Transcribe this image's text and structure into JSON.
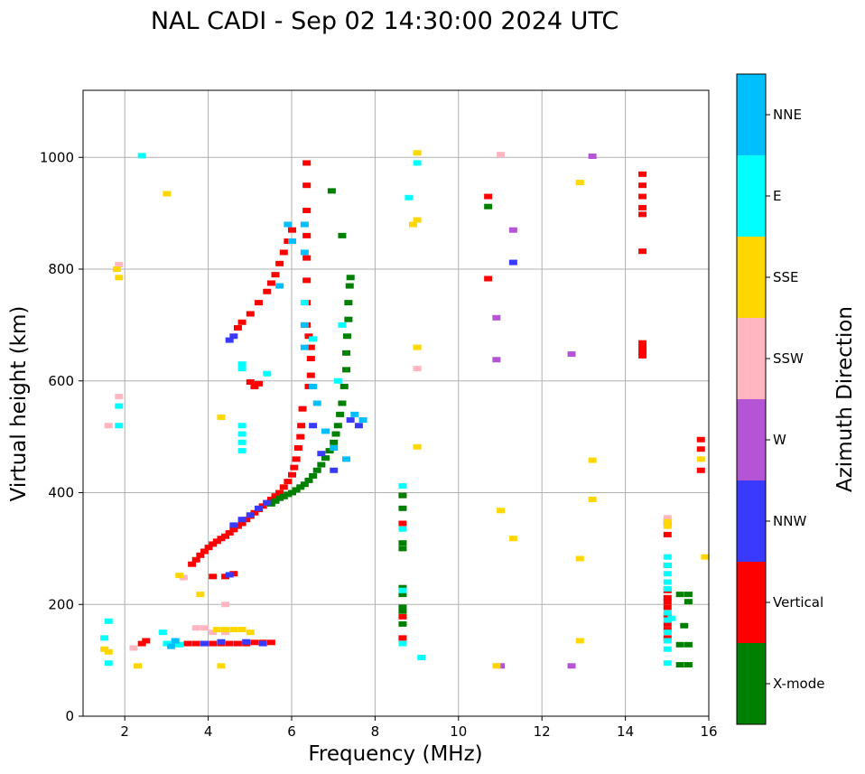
{
  "chart_data": {
    "type": "scatter",
    "title": "NAL CADI - Sep 02 14:30:00 2024 UTC",
    "xlabel": "Frequency (MHz)",
    "ylabel": "Virtual height (km)",
    "xlim": [
      1,
      16
    ],
    "ylim": [
      0,
      1120
    ],
    "xticks": [
      2,
      4,
      6,
      8,
      10,
      12,
      14,
      16
    ],
    "yticks": [
      0,
      200,
      400,
      600,
      800,
      1000
    ],
    "grid": true,
    "colorbar": {
      "label": "Azimuth Direction",
      "categories": [
        {
          "name": "X-mode",
          "color": "#008000"
        },
        {
          "name": "Vertical",
          "color": "#ff0000"
        },
        {
          "name": "NNW",
          "color": "#3a3aff"
        },
        {
          "name": "W",
          "color": "#b455d6"
        },
        {
          "name": "SSW",
          "color": "#ffb6c1"
        },
        {
          "name": "SSE",
          "color": "#ffd700"
        },
        {
          "name": "E",
          "color": "#00ffff"
        },
        {
          "name": "NNE",
          "color": "#00bfff"
        }
      ]
    },
    "series": [
      {
        "name": "Vertical",
        "points": [
          [
            3.6,
            272
          ],
          [
            3.7,
            280
          ],
          [
            3.8,
            288
          ],
          [
            3.9,
            295
          ],
          [
            4.0,
            302
          ],
          [
            4.1,
            308
          ],
          [
            4.2,
            313
          ],
          [
            4.3,
            318
          ],
          [
            4.4,
            322
          ],
          [
            4.5,
            328
          ],
          [
            4.6,
            334
          ],
          [
            4.7,
            340
          ],
          [
            4.8,
            345
          ],
          [
            4.9,
            352
          ],
          [
            5.0,
            358
          ],
          [
            5.1,
            364
          ],
          [
            5.2,
            370
          ],
          [
            5.3,
            376
          ],
          [
            5.4,
            382
          ],
          [
            5.5,
            388
          ],
          [
            5.6,
            394
          ],
          [
            5.7,
            400
          ],
          [
            5.8,
            410
          ],
          [
            5.9,
            420
          ],
          [
            6.0,
            432
          ],
          [
            6.05,
            445
          ],
          [
            6.1,
            460
          ],
          [
            6.15,
            480
          ],
          [
            6.2,
            500
          ],
          [
            6.22,
            520
          ],
          [
            6.25,
            550
          ],
          [
            4.7,
            695
          ],
          [
            4.8,
            705
          ],
          [
            5.0,
            720
          ],
          [
            5.2,
            740
          ],
          [
            5.4,
            760
          ],
          [
            5.5,
            775
          ],
          [
            5.6,
            790
          ],
          [
            5.7,
            810
          ],
          [
            5.8,
            830
          ],
          [
            5.9,
            850
          ],
          [
            6.0,
            870
          ],
          [
            6.35,
            990
          ],
          [
            6.35,
            950
          ],
          [
            6.35,
            905
          ],
          [
            6.35,
            860
          ],
          [
            6.35,
            820
          ],
          [
            6.35,
            780
          ],
          [
            6.35,
            740
          ],
          [
            6.35,
            700
          ],
          [
            6.4,
            680
          ],
          [
            6.45,
            660
          ],
          [
            6.45,
            640
          ],
          [
            6.45,
            610
          ],
          [
            6.4,
            590
          ],
          [
            3.5,
            130
          ],
          [
            3.7,
            130
          ],
          [
            3.9,
            130
          ],
          [
            4.1,
            130
          ],
          [
            4.3,
            130
          ],
          [
            4.5,
            130
          ],
          [
            4.7,
            130
          ],
          [
            4.9,
            130
          ],
          [
            5.1,
            132
          ],
          [
            5.3,
            132
          ],
          [
            5.5,
            132
          ],
          [
            2.5,
            135
          ],
          [
            2.4,
            130
          ],
          [
            4.1,
            250
          ],
          [
            4.4,
            250
          ],
          [
            4.6,
            255
          ],
          [
            5.2,
            595
          ],
          [
            5.0,
            598
          ],
          [
            5.1,
            590
          ],
          [
            10.7,
            930
          ],
          [
            10.7,
            783
          ],
          [
            14.4,
            970
          ],
          [
            14.4,
            950
          ],
          [
            14.4,
            930
          ],
          [
            14.4,
            910
          ],
          [
            14.4,
            898
          ],
          [
            14.4,
            832
          ],
          [
            14.4,
            668
          ],
          [
            14.4,
            660
          ],
          [
            14.4,
            652
          ],
          [
            14.4,
            645
          ],
          [
            15.0,
            270
          ],
          [
            15.0,
            225
          ],
          [
            15.0,
            212
          ],
          [
            15.0,
            205
          ],
          [
            15.0,
            195
          ],
          [
            15.0,
            180
          ],
          [
            15.0,
            165
          ],
          [
            15.0,
            155
          ],
          [
            15.0,
            140
          ],
          [
            15.0,
            325
          ],
          [
            15.8,
            495
          ],
          [
            15.8,
            478
          ],
          [
            15.8,
            440
          ],
          [
            8.65,
            178
          ],
          [
            8.65,
            140
          ],
          [
            8.65,
            345
          ],
          [
            8.65,
            395
          ]
        ]
      },
      {
        "name": "X-mode",
        "points": [
          [
            5.5,
            380
          ],
          [
            5.6,
            385
          ],
          [
            5.7,
            390
          ],
          [
            5.8,
            393
          ],
          [
            5.9,
            397
          ],
          [
            6.0,
            400
          ],
          [
            6.1,
            405
          ],
          [
            6.2,
            410
          ],
          [
            6.3,
            415
          ],
          [
            6.4,
            422
          ],
          [
            6.5,
            430
          ],
          [
            6.6,
            440
          ],
          [
            6.7,
            450
          ],
          [
            6.8,
            462
          ],
          [
            6.9,
            475
          ],
          [
            7.0,
            490
          ],
          [
            7.05,
            505
          ],
          [
            7.1,
            520
          ],
          [
            7.15,
            540
          ],
          [
            7.2,
            560
          ],
          [
            7.25,
            590
          ],
          [
            7.3,
            620
          ],
          [
            7.3,
            650
          ],
          [
            7.32,
            680
          ],
          [
            7.35,
            710
          ],
          [
            7.35,
            740
          ],
          [
            7.38,
            770
          ],
          [
            7.4,
            785
          ],
          [
            6.95,
            940
          ],
          [
            7.2,
            860
          ],
          [
            8.65,
            395
          ],
          [
            8.65,
            372
          ],
          [
            8.65,
            310
          ],
          [
            8.65,
            300
          ],
          [
            8.65,
            230
          ],
          [
            8.65,
            218
          ],
          [
            8.65,
            195
          ],
          [
            8.65,
            188
          ],
          [
            8.65,
            165
          ],
          [
            10.7,
            912
          ],
          [
            15.3,
            128
          ],
          [
            15.5,
            128
          ],
          [
            15.3,
            92
          ],
          [
            15.5,
            92
          ],
          [
            15.3,
            218
          ],
          [
            15.5,
            218
          ],
          [
            15.5,
            205
          ],
          [
            15.4,
            162
          ]
        ]
      },
      {
        "name": "NNW",
        "points": [
          [
            4.6,
            342
          ],
          [
            4.8,
            352
          ],
          [
            5.0,
            360
          ],
          [
            5.2,
            372
          ],
          [
            5.4,
            382
          ],
          [
            3.9,
            130
          ],
          [
            4.3,
            133
          ],
          [
            4.9,
            133
          ],
          [
            5.3,
            130
          ],
          [
            4.6,
            680
          ],
          [
            4.5,
            673
          ],
          [
            6.5,
            520
          ],
          [
            6.7,
            470
          ],
          [
            7.0,
            440
          ],
          [
            7.4,
            530
          ],
          [
            7.6,
            520
          ],
          [
            11.3,
            812
          ],
          [
            15.0,
            345
          ],
          [
            4.5,
            253
          ]
        ]
      },
      {
        "name": "W",
        "points": [
          [
            10.9,
            713
          ],
          [
            10.9,
            638
          ],
          [
            11.3,
            870
          ],
          [
            12.7,
            648
          ],
          [
            12.7,
            90
          ],
          [
            11.0,
            90
          ],
          [
            13.2,
            1002
          ]
        ]
      },
      {
        "name": "SSW",
        "points": [
          [
            3.7,
            158
          ],
          [
            3.9,
            158
          ],
          [
            4.1,
            150
          ],
          [
            4.4,
            150
          ],
          [
            15.0,
            355
          ],
          [
            15.0,
            350
          ],
          [
            1.85,
            808
          ],
          [
            1.6,
            520
          ],
          [
            2.2,
            122
          ],
          [
            11.0,
            1005
          ],
          [
            9.0,
            622
          ],
          [
            3.4,
            248
          ],
          [
            4.4,
            200
          ],
          [
            1.85,
            572
          ]
        ]
      },
      {
        "name": "SSE",
        "points": [
          [
            4.2,
            155
          ],
          [
            4.4,
            155
          ],
          [
            4.6,
            155
          ],
          [
            4.8,
            155
          ],
          [
            5.0,
            150
          ],
          [
            1.5,
            120
          ],
          [
            1.6,
            115
          ],
          [
            1.85,
            785
          ],
          [
            2.3,
            90
          ],
          [
            4.3,
            90
          ],
          [
            12.9,
            955
          ],
          [
            13.2,
            458
          ],
          [
            13.2,
            388
          ],
          [
            12.9,
            282
          ],
          [
            12.9,
            135
          ],
          [
            11.3,
            318
          ],
          [
            11.0,
            368
          ],
          [
            9.0,
            1008
          ],
          [
            9.0,
            888
          ],
          [
            8.9,
            880
          ],
          [
            9.0,
            660
          ],
          [
            9.0,
            482
          ],
          [
            15.0,
            340
          ],
          [
            15.0,
            348
          ],
          [
            15.8,
            460
          ],
          [
            15.9,
            285
          ],
          [
            1.8,
            800
          ],
          [
            3.0,
            935
          ],
          [
            4.3,
            535
          ],
          [
            3.8,
            218
          ],
          [
            3.3,
            252
          ],
          [
            10.9,
            90
          ]
        ]
      },
      {
        "name": "E",
        "points": [
          [
            4.8,
            520
          ],
          [
            4.8,
            505
          ],
          [
            4.8,
            490
          ],
          [
            4.8,
            475
          ],
          [
            4.8,
            630
          ],
          [
            4.8,
            622
          ],
          [
            15.0,
            285
          ],
          [
            15.0,
            270
          ],
          [
            15.0,
            255
          ],
          [
            15.0,
            240
          ],
          [
            15.0,
            228
          ],
          [
            15.0,
            185
          ],
          [
            15.0,
            172
          ],
          [
            15.0,
            150
          ],
          [
            15.0,
            135
          ],
          [
            15.0,
            120
          ],
          [
            15.0,
            95
          ],
          [
            15.1,
            175
          ],
          [
            8.65,
            412
          ],
          [
            8.65,
            335
          ],
          [
            8.65,
            225
          ],
          [
            8.65,
            130
          ],
          [
            8.8,
            928
          ],
          [
            9.0,
            990
          ],
          [
            9.1,
            105
          ],
          [
            3.2,
            130
          ],
          [
            3.3,
            128
          ],
          [
            1.5,
            140
          ],
          [
            1.6,
            170
          ],
          [
            1.6,
            95
          ],
          [
            1.85,
            555
          ],
          [
            1.85,
            520
          ],
          [
            2.4,
            1003
          ],
          [
            5.4,
            613
          ],
          [
            6.5,
            675
          ],
          [
            6.3,
            740
          ],
          [
            7.2,
            700
          ],
          [
            7.1,
            600
          ],
          [
            3.0,
            130
          ],
          [
            2.9,
            150
          ]
        ]
      },
      {
        "name": "NNE",
        "points": [
          [
            6.3,
            880
          ],
          [
            6.3,
            830
          ],
          [
            6.3,
            700
          ],
          [
            6.3,
            660
          ],
          [
            6.5,
            590
          ],
          [
            6.6,
            560
          ],
          [
            6.8,
            510
          ],
          [
            7.0,
            480
          ],
          [
            7.3,
            460
          ],
          [
            7.5,
            540
          ],
          [
            7.7,
            530
          ],
          [
            5.7,
            770
          ],
          [
            5.9,
            880
          ],
          [
            6.0,
            850
          ],
          [
            3.2,
            135
          ],
          [
            3.1,
            125
          ]
        ]
      }
    ]
  }
}
